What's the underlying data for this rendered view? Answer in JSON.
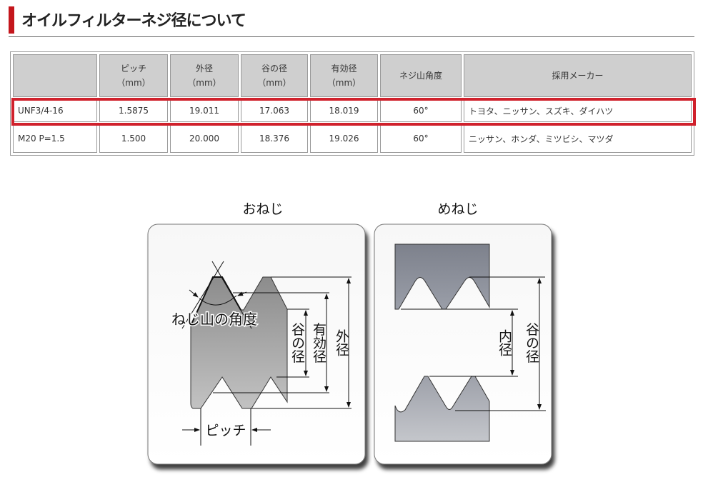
{
  "page": {
    "title": "オイルフィルターネジ径について",
    "accent": "#c4161c"
  },
  "table": {
    "headers": [
      {
        "l1": "",
        "l2": ""
      },
      {
        "l1": "ピッチ",
        "l2": "（mm）"
      },
      {
        "l1": "外径",
        "l2": "（mm）"
      },
      {
        "l1": "谷の径",
        "l2": "（mm）"
      },
      {
        "l1": "有効径",
        "l2": "（mm）"
      },
      {
        "l1": "ネジ山角度",
        "l2": ""
      },
      {
        "l1": "採用メーカー",
        "l2": ""
      }
    ],
    "rows": [
      {
        "highlighted": true,
        "cells": [
          "UNF3/4-16",
          "1.5875",
          "19.011",
          "17.063",
          "18.019",
          "60°",
          "トヨタ、ニッサン、スズキ、ダイハツ"
        ]
      },
      {
        "highlighted": false,
        "cells": [
          "M20 P=1.5",
          "1.500",
          "20.000",
          "18.376",
          "19.026",
          "60°",
          "ニッサン、ホンダ、ミツビシ、マツダ"
        ]
      }
    ]
  },
  "diagram": {
    "male": {
      "title": "おねじ",
      "angle": "ねじ山の角度",
      "pitch": "ピッチ",
      "root": "谷の径",
      "pitch_dia": "有効径",
      "major": "外径"
    },
    "female": {
      "title": "めねじ",
      "minor": "内径",
      "root": "谷の径"
    }
  }
}
